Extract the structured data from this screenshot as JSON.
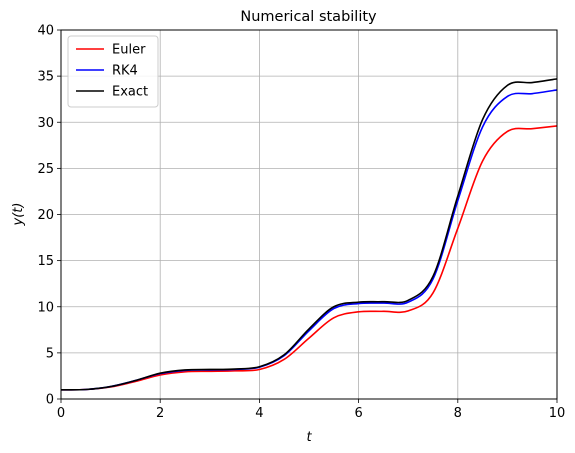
{
  "chart_data": {
    "type": "line",
    "title": "Numerical stability",
    "xlabel": "t",
    "ylabel": "y(t)",
    "xlim": [
      0,
      10
    ],
    "ylim": [
      0,
      40
    ],
    "xticks": [
      0,
      2,
      4,
      6,
      8,
      10
    ],
    "yticks": [
      0,
      5,
      10,
      15,
      20,
      25,
      30,
      35,
      40
    ],
    "grid": true,
    "legend_position": "top-left",
    "x": [
      0,
      0.5,
      1,
      1.5,
      2,
      2.5,
      3,
      3.5,
      4,
      4.5,
      5,
      5.5,
      6,
      6.5,
      7,
      7.5,
      8,
      8.5,
      9,
      9.5,
      10
    ],
    "series": [
      {
        "name": "Euler",
        "color": "#ff0000",
        "values": [
          1.0,
          1.03,
          1.3,
          1.9,
          2.6,
          2.95,
          3.0,
          3.05,
          3.2,
          4.3,
          6.6,
          8.8,
          9.45,
          9.5,
          9.55,
          11.5,
          18.5,
          25.8,
          29.0,
          29.3,
          29.6
        ]
      },
      {
        "name": "RK4",
        "color": "#0000ff",
        "values": [
          1.0,
          1.03,
          1.35,
          2.0,
          2.75,
          3.1,
          3.15,
          3.2,
          3.45,
          4.7,
          7.4,
          9.8,
          10.35,
          10.4,
          10.5,
          13.0,
          21.5,
          29.5,
          32.8,
          33.1,
          33.5
        ]
      },
      {
        "name": "Exact",
        "color": "#000000",
        "values": [
          1.0,
          1.03,
          1.35,
          2.0,
          2.8,
          3.15,
          3.2,
          3.25,
          3.5,
          4.8,
          7.6,
          10.0,
          10.5,
          10.55,
          10.7,
          13.3,
          22.0,
          30.3,
          34.0,
          34.3,
          34.7
        ]
      }
    ]
  }
}
